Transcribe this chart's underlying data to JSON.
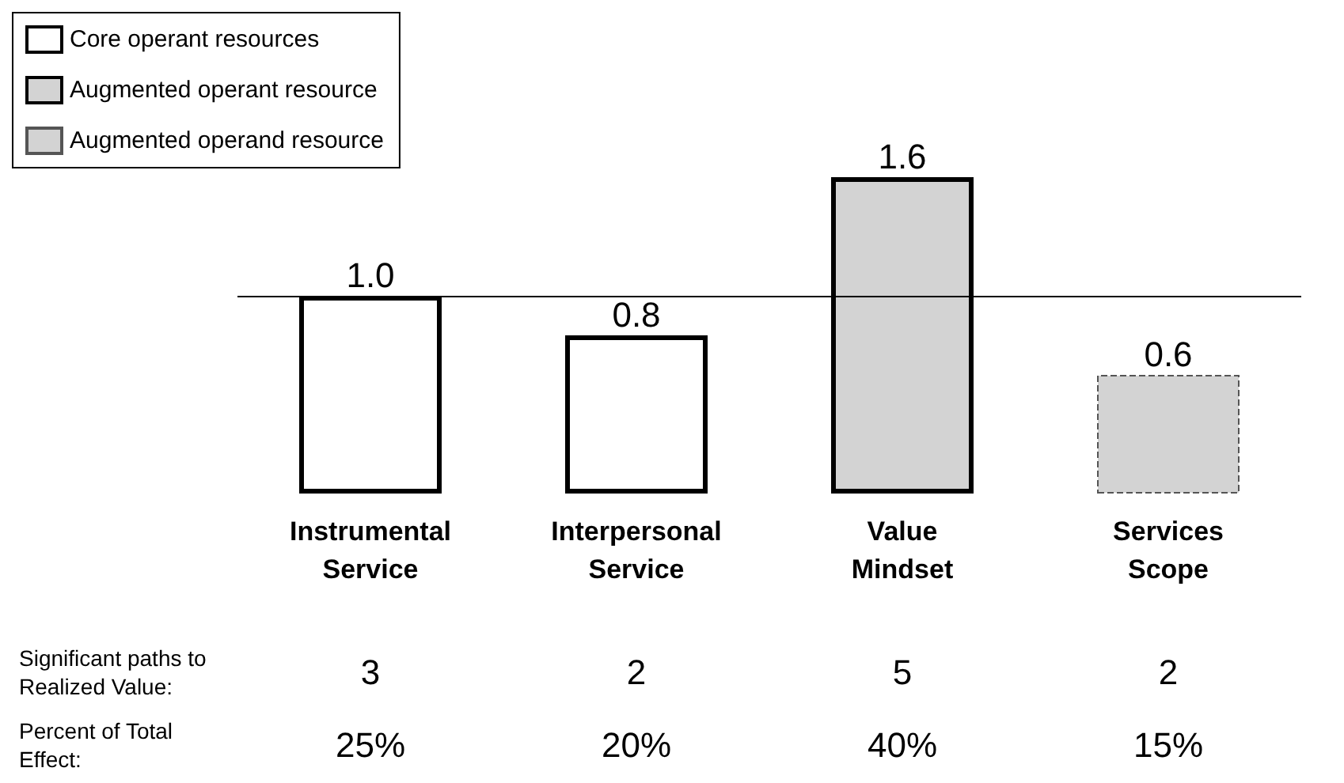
{
  "chart_data": {
    "type": "bar",
    "categories": [
      "Instrumental\nService",
      "Interpersonal\nService",
      "Value\nMindset",
      "Services\nScope"
    ],
    "series": [
      {
        "name": "Core operant resources",
        "color": "#ffffff",
        "values": [
          1.0,
          0.8,
          null,
          null
        ],
        "value_labels": [
          "1.0",
          "0.8",
          null,
          null
        ]
      },
      {
        "name": "Augmented operant resource",
        "color": "#d3d3d3",
        "values": [
          null,
          null,
          1.6,
          null
        ],
        "value_labels": [
          null,
          null,
          "1.6",
          null
        ]
      },
      {
        "name": "Augmented operand resource",
        "color": "#d3d3d3",
        "line_style": "dashed",
        "values": [
          null,
          null,
          null,
          0.6
        ],
        "value_labels": [
          null,
          null,
          null,
          "0.6"
        ]
      }
    ],
    "ref_lines": [
      {
        "axis": "y",
        "value": 1.0
      }
    ],
    "legend": "top left",
    "annotations": [
      "Significant paths to\nRealized Value:",
      "3",
      "2",
      "5",
      "2",
      "Percent of Total\nEffect:",
      "25%",
      "20%",
      "40%",
      "15%"
    ]
  }
}
